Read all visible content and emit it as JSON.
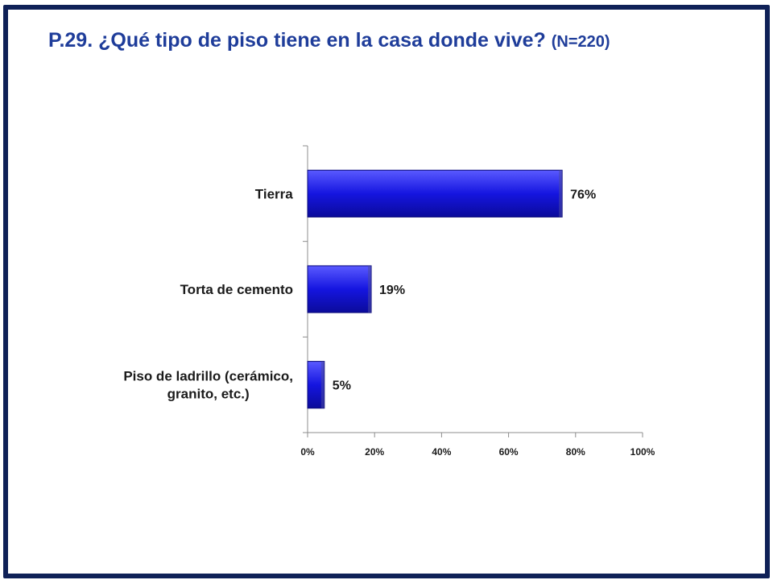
{
  "slide": {
    "title_main": "P.29. ¿Qué tipo de piso tiene en la casa donde vive?",
    "title_n": "(N=220)",
    "frame_color": "#0f2157",
    "title_color": "#1f3d9a"
  },
  "chart_data": {
    "type": "bar",
    "orientation": "horizontal",
    "categories": [
      [
        "Tierra"
      ],
      [
        "Torta de cemento"
      ],
      [
        "Piso de ladrillo (cerámico,",
        "granito, etc.)"
      ]
    ],
    "values": [
      76,
      19,
      5
    ],
    "value_labels": [
      "76%",
      "19%",
      "5%"
    ],
    "xlim": [
      0,
      100
    ],
    "x_ticks": [
      0,
      20,
      40,
      60,
      80,
      100
    ],
    "x_tick_labels": [
      "0%",
      "20%",
      "40%",
      "60%",
      "80%",
      "100%"
    ],
    "bar_color": "#1515e0",
    "grid": false,
    "legend": "none"
  }
}
